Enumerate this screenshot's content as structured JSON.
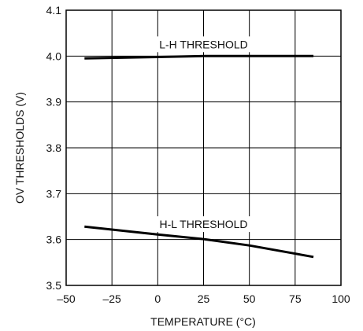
{
  "chart_data": {
    "type": "line",
    "title": "",
    "xlabel": "TEMPERATURE (°C)",
    "ylabel": "OV THRESHOLDS (V)",
    "xlim": [
      -50,
      100
    ],
    "ylim": [
      3.5,
      4.1
    ],
    "x_ticks": [
      -50,
      -25,
      0,
      25,
      50,
      75,
      100
    ],
    "x_tick_labels": [
      "–50",
      "–25",
      "0",
      "25",
      "50",
      "75",
      "100"
    ],
    "y_ticks": [
      3.5,
      3.6,
      3.7,
      3.8,
      3.9,
      4.0,
      4.1
    ],
    "y_tick_labels": [
      "3.5",
      "3.6",
      "3.7",
      "3.8",
      "3.9",
      "4.0",
      "4.1"
    ],
    "grid": true,
    "line_color": "#000000",
    "grid_color": "#000000",
    "series": [
      {
        "name": "L-H THRESHOLD",
        "x": [
          -40,
          0,
          25,
          85
        ],
        "y": [
          3.995,
          3.998,
          4.0,
          4.0
        ]
      },
      {
        "name": "H-L THRESHOLD",
        "x": [
          -40,
          0,
          25,
          50,
          85
        ],
        "y": [
          3.628,
          3.611,
          3.601,
          3.587,
          3.562
        ]
      }
    ]
  }
}
